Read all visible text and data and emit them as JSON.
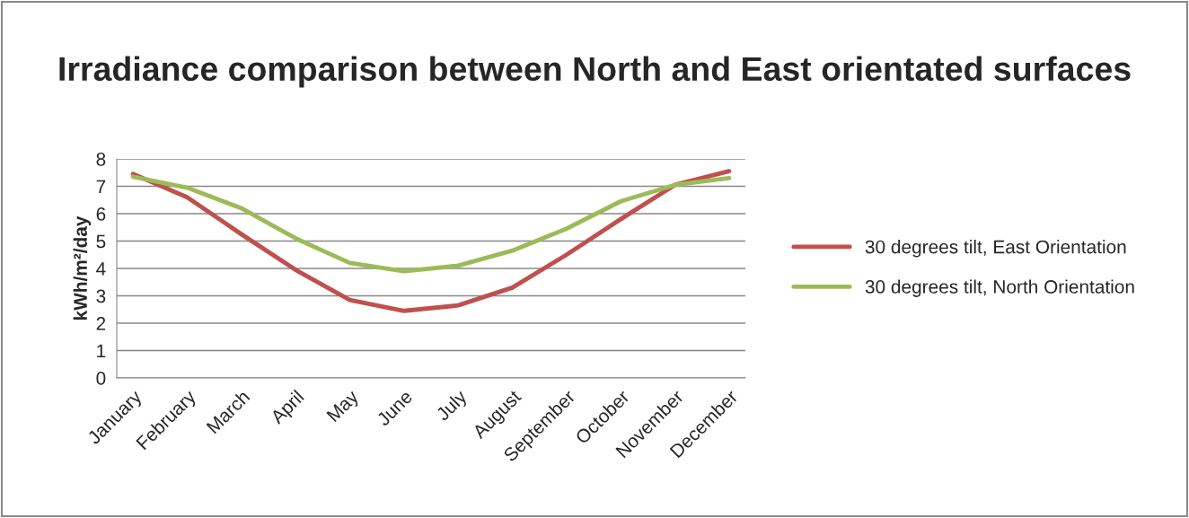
{
  "chart_data": {
    "type": "line",
    "title": "Irradiance comparison between North and East orientated surfaces",
    "ylabel": "kWh/m²/day",
    "categories": [
      "January",
      "February",
      "March",
      "April",
      "May",
      "June",
      "July",
      "August",
      "September",
      "October",
      "November",
      "December"
    ],
    "series": [
      {
        "name": "30 degrees tilt, East Orientation",
        "color": "#c0504d",
        "values": [
          7.45,
          6.6,
          5.25,
          3.95,
          2.85,
          2.45,
          2.65,
          3.3,
          4.5,
          5.8,
          7.05,
          7.55
        ]
      },
      {
        "name": "30 degrees tilt, North Orientation",
        "color": "#9bbb59",
        "values": [
          7.35,
          6.95,
          6.2,
          5.1,
          4.2,
          3.9,
          4.1,
          4.65,
          5.45,
          6.45,
          7.05,
          7.3
        ]
      }
    ],
    "ylim": [
      0,
      8
    ],
    "yticks": [
      0,
      1,
      2,
      3,
      4,
      5,
      6,
      7,
      8
    ],
    "grid": "y",
    "legend": "right",
    "marker": "none",
    "line_style": "solid"
  }
}
